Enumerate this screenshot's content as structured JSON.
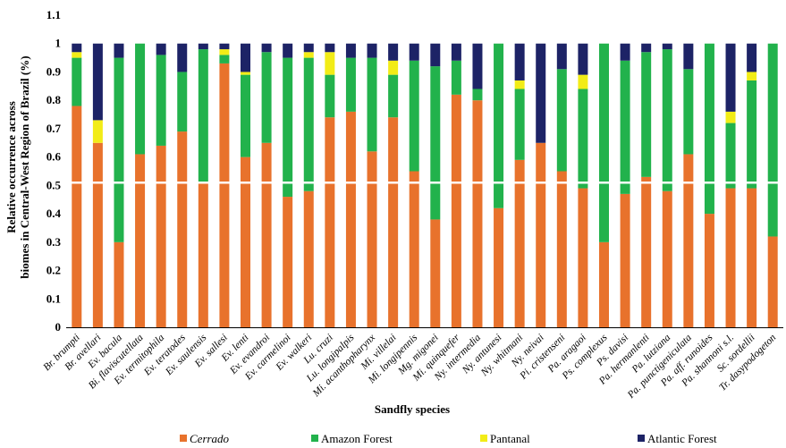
{
  "chart_data": {
    "type": "bar",
    "stacked": true,
    "title": "",
    "xlabel": "Sandfly species",
    "ylabel_lines": [
      "Relative occurrence across",
      "biomes in Central-West Region of Brazil (%)"
    ],
    "ylim": [
      0,
      1.1
    ],
    "yticks": [
      "0",
      "0.1",
      "0.2",
      "0.3",
      "0.4",
      "0.5",
      "0.6",
      "0.7",
      "0.8",
      "0.9",
      "1",
      "1.1"
    ],
    "reference_line": 0.51,
    "reference_line_color": "#ffffff",
    "grid": false,
    "legend_position": "bottom",
    "categories": [
      "Br. brumpti",
      "Br. avellari",
      "Ev. bacula",
      "Bi. flaviscutellata",
      "Ev. termitophila",
      "Ev. teratodes",
      "Ev. saulensis",
      "Ev. sallesi",
      "Ev. lenti",
      "Ev. evandroi",
      "Ev. carmelinoi",
      "Ev. walkeri",
      "Lu. cruzi",
      "Lu. longipalpis",
      "Mi. acanthopharynx",
      "Mi. villelai",
      "Mi. longipennis",
      "Mg. migonei",
      "Mi. quinquefer",
      "Ny. intermedia",
      "Ny. antunesi",
      "Ny. whitmani",
      "Ny. neivai",
      "Pi. cristenseni",
      "Pa. aragaoi",
      "Ps. complexus",
      "Ps. davisi",
      "Pa. hermanlenti",
      "Pa. lutziana",
      "Pa. punctigeniculata",
      "Pa. aff. runoides",
      "Pa. shannoni s.l.",
      "Sc. sordellii",
      "Tr. dasypodogeton"
    ],
    "series": [
      {
        "name": "Cerrado",
        "color": "#e8722c",
        "values": [
          0.78,
          0.65,
          0.3,
          0.61,
          0.64,
          0.69,
          0.51,
          0.93,
          0.6,
          0.65,
          0.46,
          0.48,
          0.74,
          0.76,
          0.62,
          0.74,
          0.55,
          0.38,
          0.82,
          0.8,
          0.42,
          0.59,
          0.65,
          0.55,
          0.49,
          0.3,
          0.47,
          0.53,
          0.48,
          0.61,
          0.4,
          0.49,
          0.49,
          0.32
        ]
      },
      {
        "name": "Amazon Forest",
        "color": "#22b24c",
        "values": [
          0.17,
          0.0,
          0.65,
          0.39,
          0.32,
          0.21,
          0.47,
          0.03,
          0.29,
          0.32,
          0.49,
          0.47,
          0.15,
          0.19,
          0.33,
          0.15,
          0.39,
          0.54,
          0.12,
          0.04,
          0.58,
          0.25,
          0.0,
          0.36,
          0.35,
          0.7,
          0.47,
          0.44,
          0.5,
          0.3,
          0.6,
          0.23,
          0.38,
          0.68
        ]
      },
      {
        "name": "Pantanal",
        "color": "#f2ec17",
        "values": [
          0.02,
          0.08,
          0.0,
          0.0,
          0.0,
          0.0,
          0.0,
          0.02,
          0.01,
          0.0,
          0.0,
          0.02,
          0.08,
          0.0,
          0.0,
          0.05,
          0.0,
          0.0,
          0.0,
          0.0,
          0.0,
          0.03,
          0.0,
          0.0,
          0.05,
          0.0,
          0.0,
          0.0,
          0.0,
          0.0,
          0.0,
          0.04,
          0.03,
          0.0
        ]
      },
      {
        "name": "Atlantic Forest",
        "color": "#1d2366",
        "values": [
          0.03,
          0.27,
          0.05,
          0.0,
          0.04,
          0.1,
          0.02,
          0.02,
          0.1,
          0.03,
          0.05,
          0.03,
          0.03,
          0.05,
          0.05,
          0.06,
          0.06,
          0.08,
          0.06,
          0.16,
          0.0,
          0.13,
          0.35,
          0.09,
          0.11,
          0.0,
          0.06,
          0.03,
          0.02,
          0.09,
          0.0,
          0.24,
          0.1,
          0.0
        ]
      }
    ],
    "legend_labels": [
      {
        "text": "Cerrado",
        "italic": true
      },
      {
        "text": "Amazon Forest",
        "italic": false
      },
      {
        "text": "Pantanal",
        "italic": false
      },
      {
        "text": "Atlantic Forest",
        "italic": false
      }
    ]
  }
}
